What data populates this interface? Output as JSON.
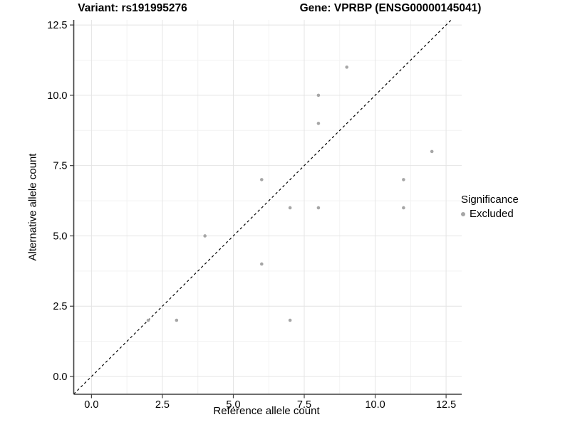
{
  "chart_data": {
    "type": "scatter",
    "title_left": "Variant: rs191995276",
    "title_right": "Gene: VPRBP (ENSG00000145041)",
    "xlabel": "Reference allele count",
    "ylabel": "Alternative allele count",
    "xticks": [
      0.0,
      2.5,
      5.0,
      7.5,
      10.0,
      12.5
    ],
    "xtick_labels": [
      "0.0",
      "2.5",
      "5.0",
      "7.5",
      "10.0",
      "12.5"
    ],
    "yticks": [
      0.0,
      2.5,
      5.0,
      7.5,
      10.0,
      12.5
    ],
    "ytick_labels": [
      "0.0",
      "2.5",
      "5.0",
      "7.5",
      "10.0",
      "12.5"
    ],
    "xlim": [
      -0.625,
      13.05
    ],
    "ylim": [
      -0.632,
      12.68
    ],
    "minor_ticks": [
      1.25,
      3.75,
      6.25,
      8.75,
      11.25
    ],
    "grid": "major+minor",
    "identity_line": {
      "style": "dashed",
      "equation": "y = x",
      "color": "#000000"
    },
    "points": [
      {
        "x": 9,
        "y": 11
      },
      {
        "x": 8,
        "y": 10
      },
      {
        "x": 8,
        "y": 9
      },
      {
        "x": 12,
        "y": 8
      },
      {
        "x": 6,
        "y": 7
      },
      {
        "x": 11,
        "y": 7
      },
      {
        "x": 7,
        "y": 6
      },
      {
        "x": 8,
        "y": 6
      },
      {
        "x": 11,
        "y": 6
      },
      {
        "x": 4,
        "y": 5
      },
      {
        "x": 6,
        "y": 4
      },
      {
        "x": 3,
        "y": 2
      },
      {
        "x": 7,
        "y": 2
      },
      {
        "x": 2,
        "y": 2
      }
    ],
    "point_color": "#a6a6a6",
    "colors": {
      "grid_major": "#e4e4e4",
      "grid_minor": "#f2f2f2",
      "axis_line": "#3f3f3f",
      "tick_mark": "#3f3f3f",
      "tick_label": "#000000",
      "background": "#ffffff"
    },
    "legend": {
      "title": "Significance",
      "position": "right",
      "items": [
        {
          "label": "Excluded",
          "color": "#a6a6a6"
        }
      ]
    }
  }
}
